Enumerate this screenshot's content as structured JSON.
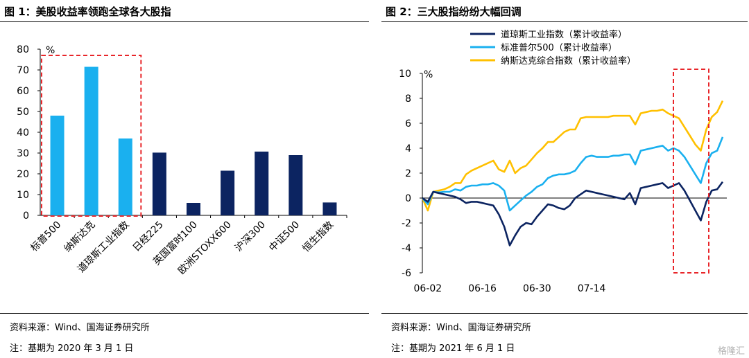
{
  "left": {
    "title": "图 1：美股收益率领跑全球各大股指",
    "source": "资料来源：Wind、国海证券研究所",
    "note": "注：基期为 2020 年 3 月 1 日"
  },
  "right": {
    "title": "图 2：三大股指纷纷大幅回调",
    "source": "资料来源：Wind、国海证券研究所",
    "note": "注：基期为 2021 年 6 月 1 日"
  },
  "watermark": "格隆汇",
  "colors": {
    "bar_highlight": "#1ab0ef",
    "bar_dark": "#0c2461",
    "dow": "#0c2461",
    "sp500": "#1ab0ef",
    "nasdaq": "#ffc000",
    "highlight_box": "#e8262a"
  },
  "chart_data": [
    {
      "type": "bar",
      "unit_label": "%",
      "ylim": [
        0,
        80
      ],
      "yticks": [
        "0",
        "10",
        "20",
        "30",
        "40",
        "50",
        "60",
        "70",
        "80"
      ],
      "categories": [
        "标普500",
        "纳斯达克",
        "道琼斯工业指数",
        "日经225",
        "英国富时100",
        "欧洲STOXX600",
        "沪深300",
        "中证500",
        "恒生指数"
      ],
      "values": [
        48,
        71.5,
        37,
        30.2,
        6,
        21.5,
        30.7,
        29,
        6.2
      ],
      "highlighted": [
        true,
        true,
        true,
        false,
        false,
        false,
        false,
        false,
        false
      ],
      "grid": false
    },
    {
      "type": "line",
      "unit_label": "%",
      "ylim": [
        -6,
        10
      ],
      "yticks": [
        "10",
        "8",
        "6",
        "4",
        "2",
        "0",
        "-2",
        "-4",
        "-6"
      ],
      "xticks": [
        "06-02",
        "06-16",
        "06-30",
        "07-14"
      ],
      "legend_position": "top",
      "grid": false,
      "series": [
        {
          "name": "道琼斯工业指数（累计收益率）",
          "color_key": "dow",
          "values": [
            0,
            -0.3,
            0.5,
            0.4,
            0.3,
            0.2,
            0.1,
            -0.1,
            -0.4,
            -0.3,
            -0.3,
            -0.4,
            -0.5,
            -0.6,
            -1.3,
            -2.3,
            -3.8,
            -3.0,
            -2.3,
            -2.0,
            -2.1,
            -1.5,
            -1.0,
            -0.5,
            -0.6,
            -0.8,
            -0.9,
            -0.6,
            0.0,
            0.3,
            0.6,
            0.5,
            0.4,
            0.3,
            0.2,
            0.1,
            0.0,
            -0.1,
            0.4,
            -0.5,
            0.8,
            0.9,
            1.0,
            1.1,
            1.2,
            0.8,
            1.0,
            1.2,
            0.6,
            -0.2,
            -1.0,
            -1.8,
            -0.3,
            0.6,
            0.7,
            1.3
          ]
        },
        {
          "name": "标准普尔500（累计收益率）",
          "color_key": "sp500",
          "values": [
            0,
            -0.5,
            0.5,
            0.45,
            0.5,
            0.5,
            0.7,
            0.6,
            0.9,
            1.0,
            1.0,
            1.1,
            1.1,
            1.2,
            1.0,
            0.6,
            -1.0,
            -0.6,
            -0.2,
            0.2,
            0.5,
            0.9,
            1.1,
            1.6,
            1.8,
            1.9,
            1.9,
            2.0,
            2.2,
            2.8,
            3.3,
            3.4,
            3.3,
            3.3,
            3.3,
            3.4,
            3.4,
            3.5,
            3.5,
            2.7,
            3.8,
            3.9,
            4.0,
            4.1,
            4.2,
            3.8,
            4.0,
            3.8,
            3.3,
            2.6,
            1.9,
            1.2,
            2.8,
            3.6,
            3.8,
            4.9
          ]
        },
        {
          "name": "纳斯达克综合指数（累计收益率）",
          "color_key": "nasdaq",
          "values": [
            0,
            -1.0,
            0.5,
            0.6,
            0.7,
            0.9,
            1.2,
            1.2,
            1.9,
            2.2,
            2.4,
            2.6,
            2.8,
            3.0,
            2.3,
            2.1,
            3.0,
            2.0,
            2.4,
            2.6,
            3.1,
            3.6,
            4.0,
            4.5,
            4.5,
            4.9,
            5.3,
            5.5,
            5.5,
            6.4,
            6.5,
            6.5,
            6.5,
            6.5,
            6.5,
            6.6,
            6.6,
            6.6,
            6.6,
            5.9,
            6.8,
            6.9,
            7.0,
            7.0,
            7.1,
            6.8,
            6.6,
            6.4,
            5.7,
            5.0,
            4.3,
            3.8,
            5.5,
            6.5,
            6.9,
            7.8
          ]
        }
      ]
    }
  ]
}
